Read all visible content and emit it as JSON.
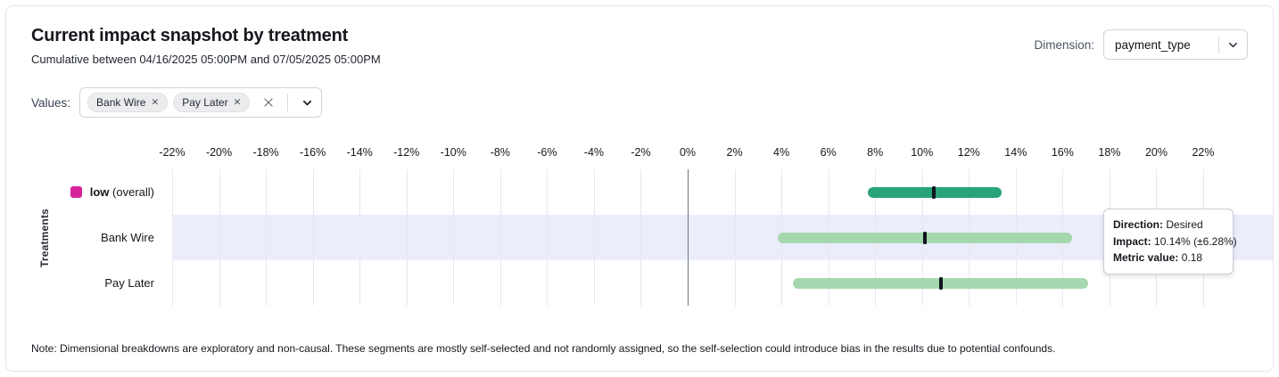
{
  "header": {
    "title": "Current impact snapshot by treatment",
    "subtitle": "Cumulative between 04/16/2025 05:00PM and 07/05/2025 05:00PM",
    "dimension_label": "Dimension:",
    "dimension_value": "payment_type"
  },
  "filters": {
    "values_label": "Values:",
    "chips": [
      {
        "label": "Bank Wire"
      },
      {
        "label": "Pay Later"
      }
    ],
    "remove_icon": "✕"
  },
  "chart_data": {
    "type": "bar",
    "orientation": "horizontal",
    "ylabel": "Treatments",
    "axis": {
      "min": -22,
      "max": 22,
      "step": 2,
      "unit": "%",
      "tick_labels": [
        "-22%",
        "-20%",
        "-18%",
        "-16%",
        "-14%",
        "-12%",
        "-10%",
        "-8%",
        "-6%",
        "-4%",
        "-2%",
        "0%",
        "2%",
        "4%",
        "6%",
        "8%",
        "10%",
        "12%",
        "14%",
        "16%",
        "18%",
        "20%",
        "22%"
      ]
    },
    "rows": [
      {
        "label_bold": "low",
        "label_suffix": "(overall)",
        "legend_color": "#d6219b",
        "bar_color": "#29a479",
        "low": 7.7,
        "high": 13.4,
        "impact": 10.5,
        "highlighted": false
      },
      {
        "label": "Bank Wire",
        "bar_color": "#a5d8ae",
        "low": 3.86,
        "high": 16.42,
        "impact": 10.14,
        "highlighted": true
      },
      {
        "label": "Pay Later",
        "bar_color": "#a5d8ae",
        "low": 4.5,
        "high": 17.1,
        "impact": 10.8,
        "highlighted": false
      }
    ]
  },
  "tooltip": {
    "direction_label": "Direction:",
    "direction_value": "Desired",
    "impact_label": "Impact:",
    "impact_value": "10.14% (±6.28%)",
    "metric_label": "Metric value:",
    "metric_value": "0.18"
  },
  "note": "Note: Dimensional breakdowns are exploratory and non-causal. These segments are mostly self-selected and not randomly assigned, so the self-selection could introduce bias in the results due to potential confounds.",
  "colors": {
    "accent_magenta": "#d6219b",
    "bar_dark_green": "#29a479",
    "bar_light_green": "#a5d8ae",
    "row_highlight": "#ecedfb",
    "impact_marker": "#10151c"
  }
}
